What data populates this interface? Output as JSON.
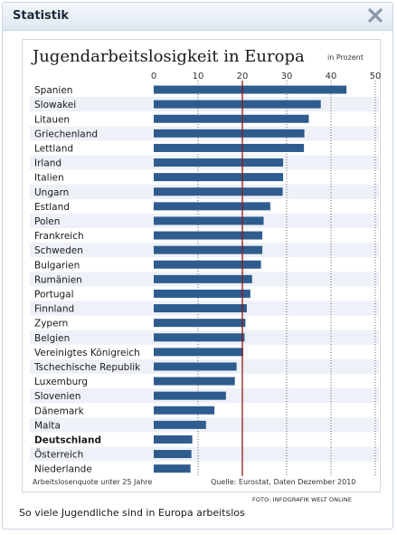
{
  "widget": {
    "title": "Statistik",
    "close_icon": "close-icon",
    "credit": "FOTO: INFOGRAFIK WELT ONLINE",
    "caption": "So viele Jugendliche sind in Europa arbeitslos"
  },
  "chart_data": {
    "type": "bar",
    "orientation": "horizontal",
    "title": "Jugendarbeitslosigkeit in Europa",
    "unit": "in Prozent",
    "xlim": [
      0,
      50
    ],
    "xticks": [
      0,
      10,
      20,
      30,
      40,
      50
    ],
    "reference_line": 20,
    "categories": [
      "Spanien",
      "Slowakei",
      "Litauen",
      "Griechenland",
      "Lettland",
      "Irland",
      "Italien",
      "Ungarn",
      "Estland",
      "Polen",
      "Frankreich",
      "Schweden",
      "Bulgarien",
      "Rumänien",
      "Portugal",
      "Finnland",
      "Zypern",
      "Belgien",
      "Vereinigtes Königreich",
      "Tschechische Republik",
      "Luxemburg",
      "Slovenien",
      "Dänemark",
      "Malta",
      "Deutschland",
      "Österreich",
      "Niederlande"
    ],
    "highlight": "Deutschland",
    "values": [
      43.5,
      37.7,
      35,
      34,
      33.9,
      29.2,
      29.2,
      29.1,
      26.3,
      24.8,
      24.5,
      24.5,
      24.2,
      22.2,
      21.8,
      21,
      20.7,
      20.5,
      20.2,
      18.7,
      18.3,
      16.3,
      13.7,
      11.8,
      8.7,
      8.5,
      8.3
    ],
    "footnote_left": "Arbeitslosenquote unter 25 Jahre",
    "source": "Quelle: Eurostat, Daten Dezember 2010",
    "colors": {
      "bar": "#2e5c8e",
      "reference": "#8b1a1a",
      "stripe": "#eef1f8",
      "grid": "#444444"
    }
  }
}
